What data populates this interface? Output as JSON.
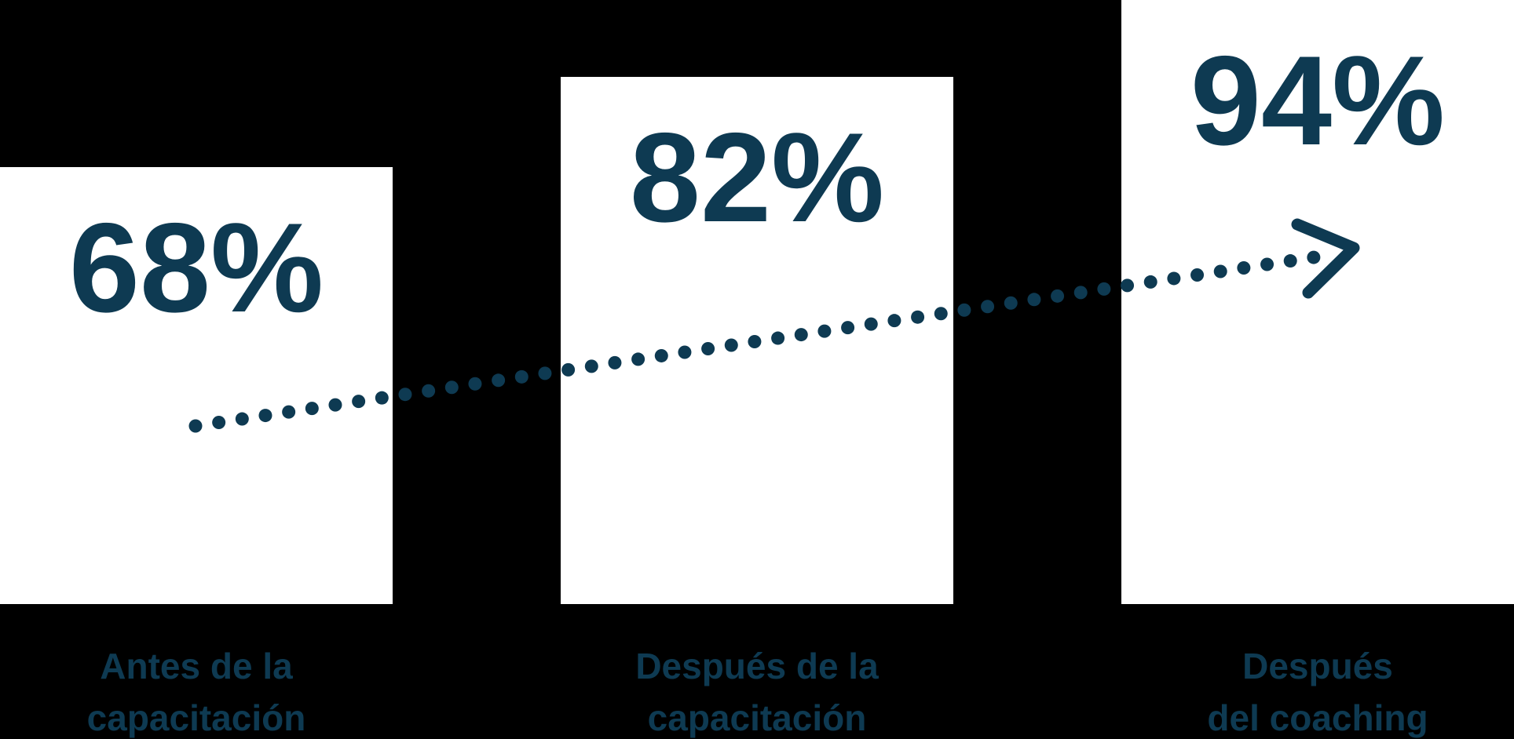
{
  "colors": {
    "background": "#000000",
    "bar": "#ffffff",
    "accent": "#0e3a52"
  },
  "chart_data": {
    "type": "bar",
    "title": "",
    "xlabel": "",
    "ylabel": "",
    "categories": [
      "Antes de la capacitación",
      "Después de la capacitación",
      "Después del coaching"
    ],
    "values": [
      68,
      82,
      94
    ],
    "value_labels": [
      "68%",
      "82%",
      "94%"
    ],
    "ylim": [
      0,
      94
    ],
    "gridlines": false,
    "legend": false,
    "bars": [
      {
        "value": 68,
        "value_label": "68%",
        "label_lines": [
          "Antes de la",
          "capacitación"
        ]
      },
      {
        "value": 82,
        "value_label": "82%",
        "label_lines": [
          "Después de la",
          "capacitación"
        ]
      },
      {
        "value": 94,
        "value_label": "94%",
        "label_lines": [
          "Después",
          "del coaching"
        ]
      }
    ],
    "annotation": {
      "trend_arrow": {
        "style": "dotted",
        "direction": "up-right",
        "color": "#0e3a52"
      }
    }
  }
}
